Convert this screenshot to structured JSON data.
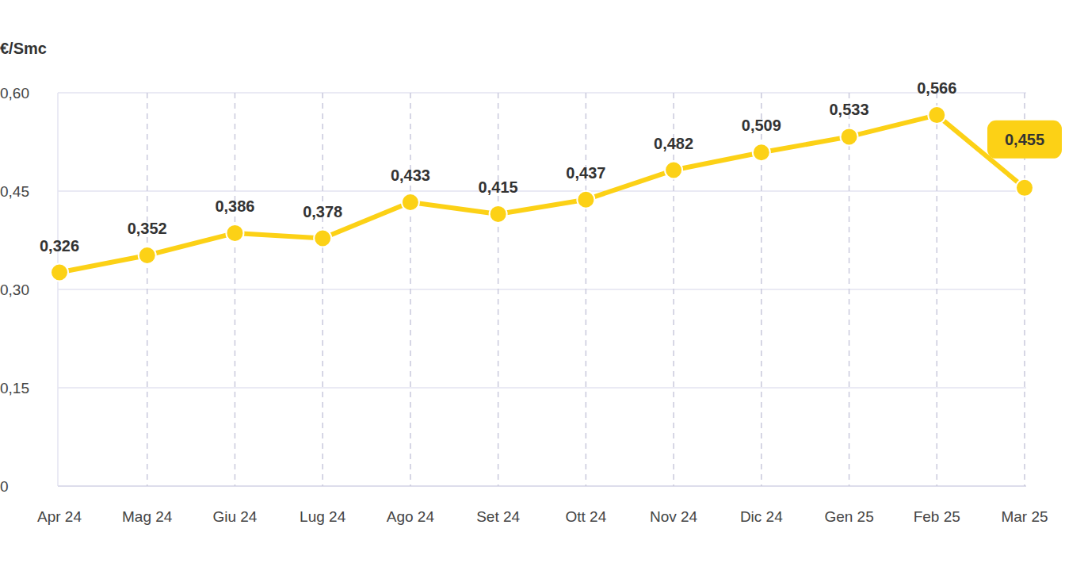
{
  "chart_data": {
    "type": "line",
    "y_label": "€/Smc",
    "categories": [
      "Apr 24",
      "Mag 24",
      "Giu 24",
      "Lug 24",
      "Ago 24",
      "Set 24",
      "Ott 24",
      "Nov 24",
      "Dic 24",
      "Gen 25",
      "Feb 25",
      "Mar 25"
    ],
    "values": [
      0.326,
      0.352,
      0.386,
      0.378,
      0.433,
      0.415,
      0.437,
      0.482,
      0.509,
      0.533,
      0.566,
      0.455
    ],
    "value_labels": [
      "0,326",
      "0,352",
      "0,386",
      "0,378",
      "0,433",
      "0,415",
      "0,437",
      "0,482",
      "0,509",
      "0,533",
      "0,566",
      "0,455"
    ],
    "color": "#fcd116",
    "marker": "circle",
    "ylim": [
      0,
      0.6
    ],
    "yticks": [
      0,
      {
        "value": 0.15,
        "label": "0,15"
      },
      {
        "value": 0.3,
        "label": "0,30"
      },
      {
        "value": 0.45,
        "label": "0,45"
      },
      {
        "value": 0.6,
        "label": "0,60"
      }
    ],
    "grid": true,
    "data_labels": true
  }
}
